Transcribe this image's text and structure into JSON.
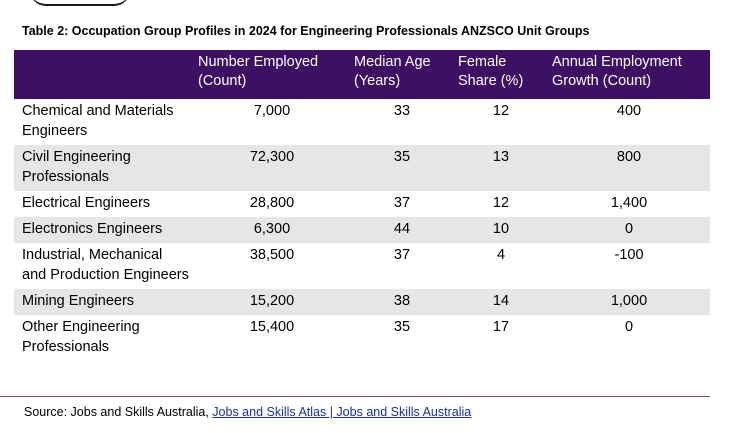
{
  "caption": "Table 2: Occupation Group Profiles in 2024 for Engineering Professionals ANZSCO Unit Groups",
  "table": {
    "headers": [
      "",
      "Number Employed (Count)",
      "Median Age (Years)",
      "Female Share (%)",
      "Annual Employment Growth (Count)"
    ],
    "rows": [
      {
        "name": "Chemical and Materials Engineers",
        "employed": "7,000",
        "age": "33",
        "female": "12",
        "growth": "400"
      },
      {
        "name": "Civil Engineering Professionals",
        "employed": "72,300",
        "age": "35",
        "female": "13",
        "growth": "800"
      },
      {
        "name": "Electrical Engineers",
        "employed": "28,800",
        "age": "37",
        "female": "12",
        "growth": "1,400"
      },
      {
        "name": "Electronics Engineers",
        "employed": "6,300",
        "age": "44",
        "female": "10",
        "growth": "0"
      },
      {
        "name": "Industrial, Mechanical and Production Engineers",
        "employed": "38,500",
        "age": "37",
        "female": "4",
        "growth": "-100"
      },
      {
        "name": "Mining Engineers",
        "employed": "15,200",
        "age": "38",
        "female": "14",
        "growth": "1,000"
      },
      {
        "name": "Other Engineering Professionals",
        "employed": "15,400",
        "age": "35",
        "female": "17",
        "growth": "0"
      }
    ]
  },
  "source": {
    "prefix": "Source: Jobs and Skills Australia, ",
    "link_text": "Jobs and Skills Atlas | Jobs and Skills Australia"
  },
  "colors": {
    "header_bg": "#3d1064",
    "row_shade": "#e6e6e6",
    "link": "#1a2fa0"
  }
}
